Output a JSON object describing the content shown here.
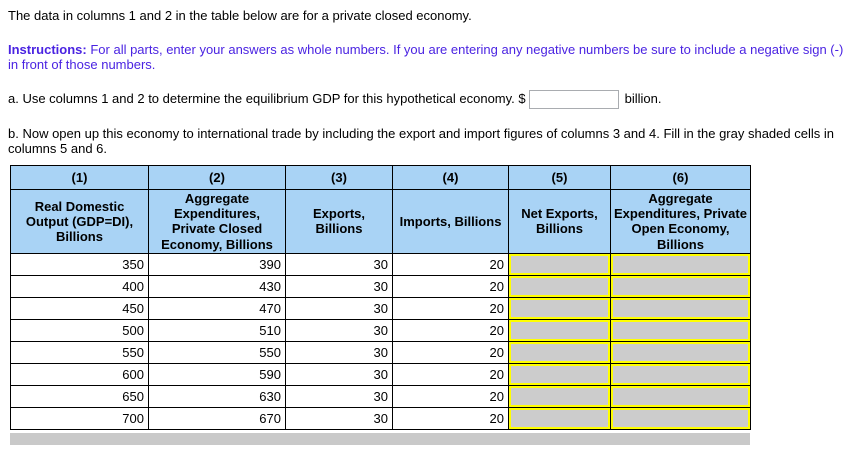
{
  "page": {
    "intro": "The data in columns 1 and 2 in the table below are for a private closed economy.",
    "instructions": {
      "label": "Instructions:",
      "text": " For all parts, enter your answers as whole numbers. If you are entering any negative numbers be sure to include a negative sign (-) in front of those numbers."
    },
    "part_a": {
      "text": "a. Use columns 1 and 2 to determine the equilibrium GDP for this hypothetical economy. $",
      "input_value": "",
      "suffix": "billion."
    },
    "part_b": "b. Now open up this economy to international trade by including the export and import figures of columns 3 and 4. Fill in the gray shaded cells in columns 5 and 6."
  },
  "table": {
    "column_numbers": [
      "(1)",
      "(2)",
      "(3)",
      "(4)",
      "(5)",
      "(6)"
    ],
    "column_headers": [
      "Real Domestic Output (GDP=DI), Billions",
      "Aggregate Expenditures, Private Closed Economy, Billions",
      "Exports, Billions",
      "Imports, Billions",
      "Net Exports, Billions",
      "Aggregate Expenditures, Private Open Economy, Billions"
    ],
    "rows": [
      [
        350,
        390,
        30,
        20
      ],
      [
        400,
        430,
        30,
        20
      ],
      [
        450,
        470,
        30,
        20
      ],
      [
        500,
        510,
        30,
        20
      ],
      [
        550,
        550,
        30,
        20
      ],
      [
        600,
        590,
        30,
        20
      ],
      [
        650,
        630,
        30,
        20
      ],
      [
        700,
        670,
        30,
        20
      ]
    ],
    "answers": {
      "net_exports": [
        "",
        "",
        "",
        "",
        "",
        "",
        "",
        ""
      ],
      "ae_open_economy": [
        "",
        "",
        "",
        "",
        "",
        "",
        "",
        ""
      ]
    }
  },
  "colors": {
    "table_header_bg": "#a9d3f5",
    "answer_cell_bg": "#cccccc",
    "answer_cell_border": "#ffff00",
    "instructions_text": "#4a23e2",
    "scrollbar_bg": "#c9c9c9"
  }
}
